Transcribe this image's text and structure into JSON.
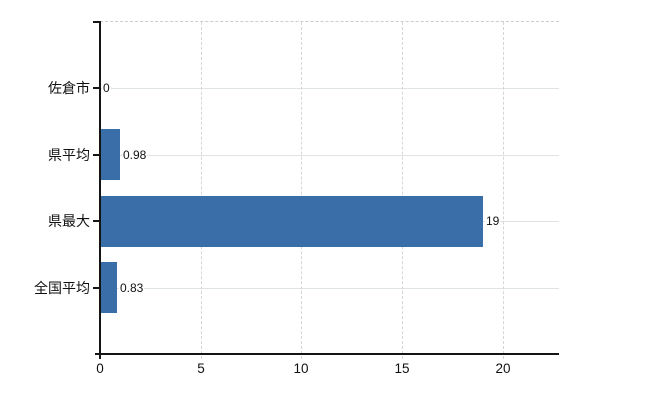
{
  "chart_data": {
    "type": "bar",
    "orientation": "horizontal",
    "title": "",
    "xlabel": "",
    "ylabel": "",
    "categories": [
      "佐倉市",
      "県平均",
      "県最大",
      "全国平均"
    ],
    "values": [
      0,
      0.98,
      19,
      0.83
    ],
    "value_labels": [
      "0",
      "0.98",
      "19",
      "0.83"
    ],
    "x_ticks": [
      0,
      5,
      10,
      15,
      20
    ],
    "x_tick_labels": [
      "0",
      "5",
      "10",
      "15",
      "20"
    ],
    "xlim": [
      0,
      22.8
    ],
    "grid": true,
    "legend": false,
    "colors": {
      "bar": "#3a6ea8",
      "vertical_grid": "#d6d6d6",
      "horizontal_grid": "#dee4de",
      "axis": "#151515",
      "text": "#111111",
      "background": "#ffffff"
    }
  }
}
